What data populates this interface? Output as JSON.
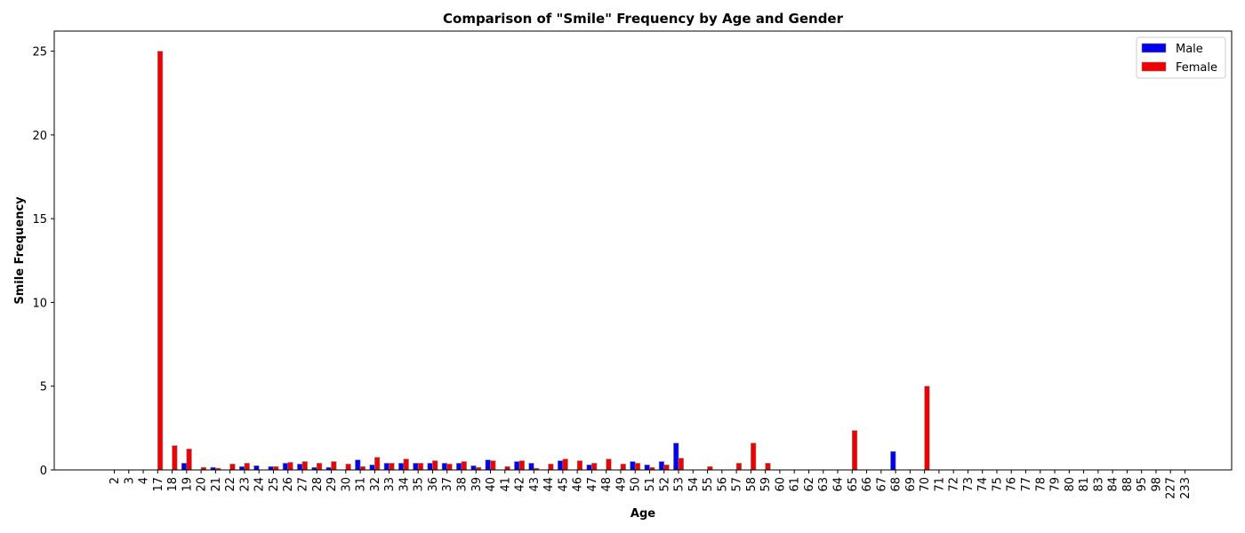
{
  "chart_data": {
    "type": "bar",
    "title": "Comparison of \"Smile\" Frequency by Age and Gender",
    "xlabel": "Age",
    "ylabel": "Smile Frequency",
    "ylim": [
      0,
      26.2
    ],
    "yticks": [
      0,
      5,
      10,
      15,
      20,
      25
    ],
    "grid": false,
    "legend_position": "top-right",
    "categories": [
      "2",
      "3",
      "4",
      "17",
      "18",
      "19",
      "20",
      "21",
      "22",
      "23",
      "24",
      "25",
      "26",
      "27",
      "28",
      "29",
      "30",
      "31",
      "32",
      "33",
      "34",
      "35",
      "36",
      "37",
      "38",
      "39",
      "40",
      "41",
      "42",
      "43",
      "44",
      "45",
      "46",
      "47",
      "48",
      "49",
      "50",
      "51",
      "52",
      "53",
      "54",
      "55",
      "56",
      "57",
      "58",
      "59",
      "60",
      "61",
      "62",
      "63",
      "64",
      "65",
      "66",
      "67",
      "68",
      "69",
      "70",
      "71",
      "72",
      "73",
      "74",
      "75",
      "76",
      "77",
      "78",
      "79",
      "80",
      "81",
      "83",
      "84",
      "88",
      "95",
      "98",
      "227",
      "233"
    ],
    "series": [
      {
        "name": "Male",
        "color": "#0000ee",
        "values": [
          0,
          0,
          0,
          0,
          0,
          0.4,
          0,
          0.15,
          0,
          0.2,
          0.25,
          0.2,
          0.4,
          0.35,
          0.15,
          0.15,
          0,
          0.6,
          0.3,
          0.4,
          0.4,
          0.4,
          0.4,
          0.4,
          0.4,
          0.25,
          0.6,
          0,
          0.5,
          0.4,
          0,
          0.55,
          0,
          0.3,
          0,
          0,
          0.5,
          0.3,
          0.5,
          1.6,
          0,
          0,
          0,
          0,
          0,
          0,
          0,
          0,
          0,
          0,
          0,
          0,
          0,
          0,
          1.1,
          0,
          0,
          0,
          0,
          0,
          0,
          0,
          0,
          0,
          0,
          0,
          0,
          0,
          0,
          0,
          0,
          0,
          0,
          0,
          0
        ]
      },
      {
        "name": "Female",
        "color": "#ee0000",
        "values": [
          0,
          0,
          0,
          25,
          1.45,
          1.25,
          0.15,
          0.1,
          0.35,
          0.4,
          0,
          0.2,
          0.45,
          0.5,
          0.4,
          0.5,
          0.35,
          0.2,
          0.75,
          0.4,
          0.65,
          0.4,
          0.55,
          0.35,
          0.5,
          0.15,
          0.55,
          0.2,
          0.55,
          0.1,
          0.35,
          0.65,
          0.55,
          0.4,
          0.65,
          0.35,
          0.4,
          0.15,
          0.3,
          0.7,
          0,
          0.2,
          0,
          0.4,
          1.6,
          0.4,
          0,
          0,
          0,
          0,
          0,
          2.35,
          0,
          0,
          0,
          0,
          5,
          0,
          0,
          0,
          0,
          0,
          0,
          0,
          0,
          0,
          0,
          0,
          0,
          0,
          0,
          0,
          0,
          0,
          0
        ]
      }
    ]
  }
}
